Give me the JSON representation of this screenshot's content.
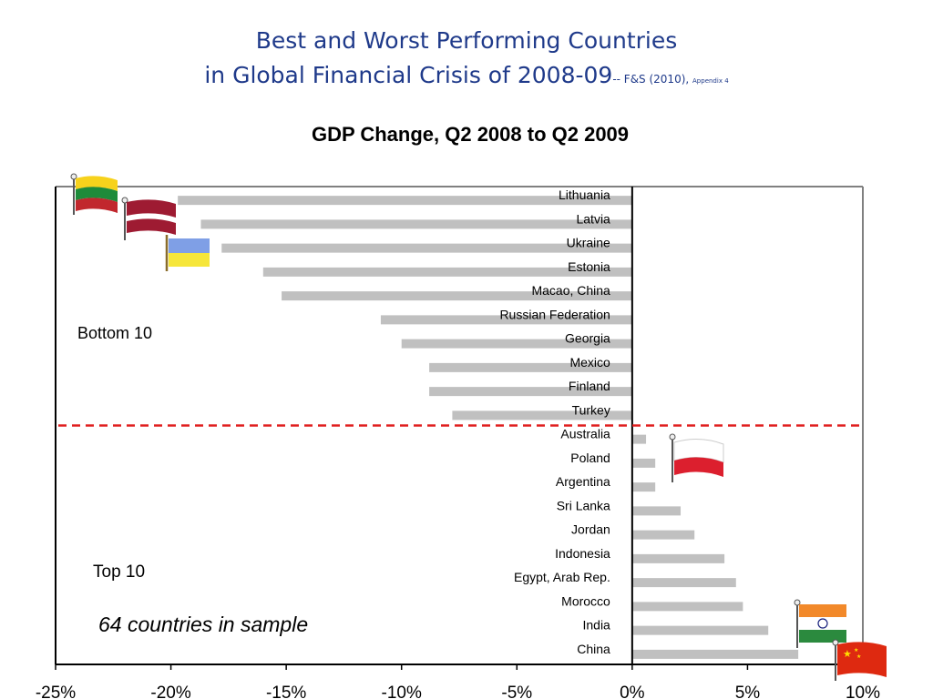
{
  "slide": {
    "title_line1": "Best and Worst Performing Countries",
    "title_line2": "in Global Financial Crisis of 2008-09",
    "citation": "-- F&S (2010), ",
    "appendix": "Appendix 4"
  },
  "annotations": {
    "bottom_label": "Bottom 10",
    "top_label": "Top 10",
    "sample_note": "64 countries in sample"
  },
  "colors": {
    "bar": "#c0c0c0",
    "divider": "#e02020",
    "title": "#1f3a8a",
    "axis": "#000000"
  },
  "flags": [
    "lithuania-flag-icon",
    "latvia-flag-icon",
    "ukraine-flag-icon",
    "poland-flag-icon",
    "india-flag-icon",
    "china-flag-icon"
  ],
  "chart_data": {
    "type": "bar",
    "orientation": "horizontal",
    "title": "GDP Change, Q2 2008 to Q2 2009",
    "categories": [
      "Lithuania",
      "Latvia",
      "Ukraine",
      "Estonia",
      "Macao, China",
      "Russian Federation",
      "Georgia",
      "Mexico",
      "Finland",
      "Turkey",
      "Australia",
      "Poland",
      "Argentina",
      "Sri Lanka",
      "Jordan",
      "Indonesia",
      "Egypt, Arab Rep.",
      "Morocco",
      "India",
      "China"
    ],
    "values": [
      -19.7,
      -18.7,
      -17.8,
      -16.0,
      -15.2,
      -10.9,
      -10.0,
      -8.8,
      -8.8,
      -7.8,
      0.6,
      1.0,
      1.0,
      2.1,
      2.7,
      4.0,
      4.5,
      4.8,
      5.9,
      7.2
    ],
    "xlim": [
      -25,
      10
    ],
    "xticks": [
      "-25%",
      "-20%",
      "-15%",
      "-10%",
      "-5%",
      "0%",
      "5%",
      "10%"
    ],
    "grid": false,
    "legend": "none"
  }
}
